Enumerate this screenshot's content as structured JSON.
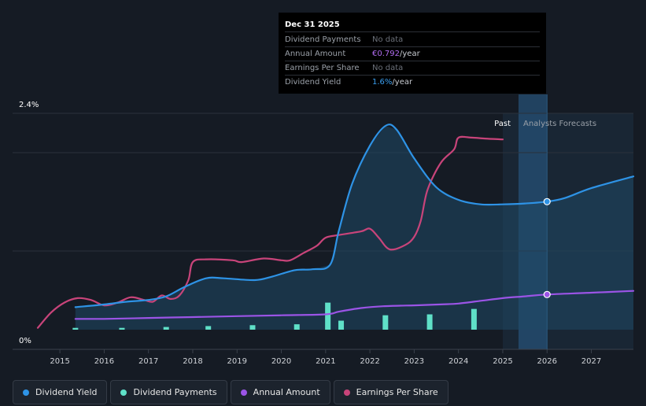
{
  "tooltip": {
    "date": "Dec 31 2025",
    "rows": [
      {
        "label": "Dividend Payments",
        "value": "No data",
        "highlight": "",
        "unit": ""
      },
      {
        "label": "Annual Amount",
        "value": "",
        "highlight": "€0.792",
        "unit": "/year"
      },
      {
        "label": "Earnings Per Share",
        "value": "No data",
        "highlight": "",
        "unit": ""
      },
      {
        "label": "Dividend Yield",
        "value": "",
        "highlight": "1.6%",
        "unit": "/year"
      }
    ]
  },
  "regions": {
    "past_label": "Past",
    "forecast_label": "Analysts Forecasts"
  },
  "legend": [
    {
      "label": "Dividend Yield",
      "color": "#2e93e6"
    },
    {
      "label": "Dividend Payments",
      "color": "#5fe0c8"
    },
    {
      "label": "Annual Amount",
      "color": "#9b54e6"
    },
    {
      "label": "Earnings Per Share",
      "color": "#c8447a"
    }
  ],
  "chart_data": {
    "type": "line",
    "title": "",
    "y_axis_labels": [
      "2.4%",
      "0%"
    ],
    "ylim": [
      0,
      2.4
    ],
    "xlim": [
      2014.5,
      2027.95
    ],
    "x_ticks": [
      "2015",
      "2016",
      "2017",
      "2018",
      "2019",
      "2020",
      "2021",
      "2022",
      "2023",
      "2024",
      "2025",
      "2026",
      "2027"
    ],
    "past_end": 2025.0,
    "highlight_x": 2026.0,
    "series": [
      {
        "name": "Dividend Yield",
        "color": "#2e93e6",
        "unit": "%",
        "points": [
          [
            2015.35,
            0.25
          ],
          [
            2016.0,
            0.28
          ],
          [
            2016.5,
            0.31
          ],
          [
            2017.0,
            0.33
          ],
          [
            2017.4,
            0.37
          ],
          [
            2017.8,
            0.47
          ],
          [
            2018.3,
            0.57
          ],
          [
            2018.7,
            0.57
          ],
          [
            2019.4,
            0.55
          ],
          [
            2019.8,
            0.59
          ],
          [
            2020.3,
            0.66
          ],
          [
            2020.7,
            0.67
          ],
          [
            2021.1,
            0.72
          ],
          [
            2021.3,
            1.1
          ],
          [
            2021.6,
            1.62
          ],
          [
            2022.0,
            2.04
          ],
          [
            2022.35,
            2.26
          ],
          [
            2022.6,
            2.22
          ],
          [
            2023.0,
            1.9
          ],
          [
            2023.5,
            1.58
          ],
          [
            2024.0,
            1.44
          ],
          [
            2024.5,
            1.39
          ],
          [
            2025.0,
            1.39
          ],
          [
            2025.5,
            1.4
          ],
          [
            2026.0,
            1.42
          ],
          [
            2026.4,
            1.46
          ],
          [
            2027.0,
            1.57
          ],
          [
            2027.95,
            1.7
          ]
        ]
      },
      {
        "name": "Annual Amount",
        "color": "#9b54e6",
        "unit": "%",
        "points": [
          [
            2015.35,
            0.12
          ],
          [
            2016.0,
            0.12
          ],
          [
            2017.0,
            0.13
          ],
          [
            2018.0,
            0.14
          ],
          [
            2019.0,
            0.15
          ],
          [
            2020.0,
            0.16
          ],
          [
            2021.0,
            0.17
          ],
          [
            2021.3,
            0.2
          ],
          [
            2021.8,
            0.24
          ],
          [
            2022.3,
            0.26
          ],
          [
            2023.0,
            0.27
          ],
          [
            2023.6,
            0.28
          ],
          [
            2024.0,
            0.29
          ],
          [
            2024.5,
            0.32
          ],
          [
            2025.0,
            0.35
          ],
          [
            2025.5,
            0.37
          ],
          [
            2026.0,
            0.39
          ],
          [
            2027.0,
            0.41
          ],
          [
            2027.95,
            0.43
          ]
        ]
      },
      {
        "name": "Earnings Per Share",
        "color": "#c8447a",
        "unit": "%",
        "points": [
          [
            2014.5,
            0.02
          ],
          [
            2014.8,
            0.19
          ],
          [
            2015.1,
            0.3
          ],
          [
            2015.4,
            0.35
          ],
          [
            2015.7,
            0.33
          ],
          [
            2016.0,
            0.27
          ],
          [
            2016.3,
            0.3
          ],
          [
            2016.6,
            0.36
          ],
          [
            2016.9,
            0.33
          ],
          [
            2017.1,
            0.31
          ],
          [
            2017.3,
            0.38
          ],
          [
            2017.5,
            0.34
          ],
          [
            2017.7,
            0.38
          ],
          [
            2017.9,
            0.55
          ],
          [
            2018.0,
            0.75
          ],
          [
            2018.3,
            0.78
          ],
          [
            2018.9,
            0.77
          ],
          [
            2019.1,
            0.75
          ],
          [
            2019.6,
            0.79
          ],
          [
            2020.0,
            0.77
          ],
          [
            2020.2,
            0.77
          ],
          [
            2020.5,
            0.85
          ],
          [
            2020.8,
            0.93
          ],
          [
            2021.0,
            1.02
          ],
          [
            2021.3,
            1.05
          ],
          [
            2021.8,
            1.09
          ],
          [
            2022.0,
            1.12
          ],
          [
            2022.2,
            1.02
          ],
          [
            2022.45,
            0.89
          ],
          [
            2022.8,
            0.94
          ],
          [
            2023.0,
            1.03
          ],
          [
            2023.15,
            1.21
          ],
          [
            2023.3,
            1.55
          ],
          [
            2023.6,
            1.85
          ],
          [
            2023.9,
            2.0
          ],
          [
            2024.0,
            2.13
          ],
          [
            2024.3,
            2.13
          ],
          [
            2024.6,
            2.12
          ],
          [
            2025.0,
            2.11
          ]
        ]
      }
    ],
    "bars": {
      "name": "Dividend Payments",
      "color": "#5fe0c8",
      "points": [
        [
          2015.35,
          0.02
        ],
        [
          2016.4,
          0.02
        ],
        [
          2017.4,
          0.03
        ],
        [
          2018.35,
          0.04
        ],
        [
          2019.35,
          0.05
        ],
        [
          2020.35,
          0.06
        ],
        [
          2021.05,
          0.3
        ],
        [
          2021.35,
          0.1
        ],
        [
          2022.35,
          0.16
        ],
        [
          2023.35,
          0.17
        ],
        [
          2024.35,
          0.23
        ]
      ]
    }
  }
}
